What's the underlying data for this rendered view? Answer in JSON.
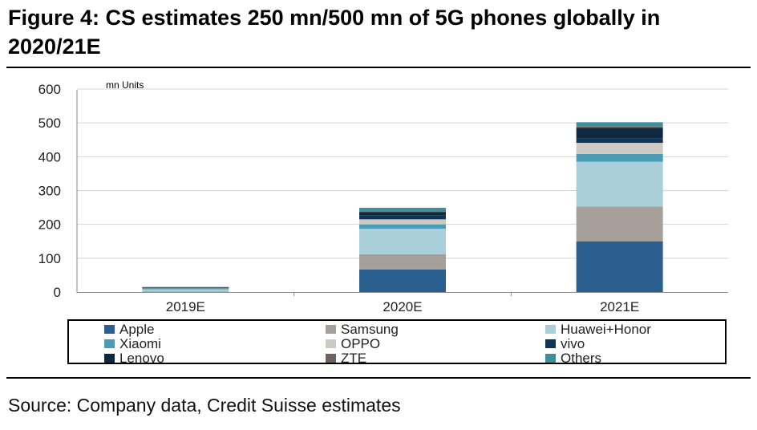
{
  "figure": {
    "title": "Figure 4: CS estimates 250 mn/500 mn of 5G phones globally in 2020/21E",
    "source": "Source: Company data, Credit Suisse estimates"
  },
  "chart_data": {
    "type": "bar",
    "stacked": true,
    "unit_label": "mn Units",
    "categories": [
      "2019E",
      "2020E",
      "2021E"
    ],
    "ylim": [
      0,
      600
    ],
    "yticks": [
      0,
      100,
      200,
      300,
      400,
      500,
      600
    ],
    "grid": true,
    "legend_position": "bottom",
    "series": [
      {
        "name": "Apple",
        "color": "#2a5f8f",
        "values": [
          0,
          67,
          150
        ]
      },
      {
        "name": "Samsung",
        "color": "#a7a09a",
        "values": [
          2,
          45,
          103
        ]
      },
      {
        "name": "Huawei+Honor",
        "color": "#a9d0da",
        "values": [
          5,
          75,
          132
        ]
      },
      {
        "name": "Xiaomi",
        "color": "#4a9bb5",
        "values": [
          2,
          13,
          23
        ]
      },
      {
        "name": "OPPO",
        "color": "#cfc9c4",
        "values": [
          2,
          15,
          33
        ]
      },
      {
        "name": "vivo",
        "color": "#0d3557",
        "values": [
          1,
          11,
          14
        ]
      },
      {
        "name": "Lenovo",
        "color": "#0f2a40",
        "values": [
          1,
          10,
          30
        ]
      },
      {
        "name": "ZTE",
        "color": "#6e635c",
        "values": [
          1,
          3,
          4
        ]
      },
      {
        "name": "Others",
        "color": "#3f8f9a",
        "values": [
          1,
          10,
          13
        ]
      }
    ]
  }
}
